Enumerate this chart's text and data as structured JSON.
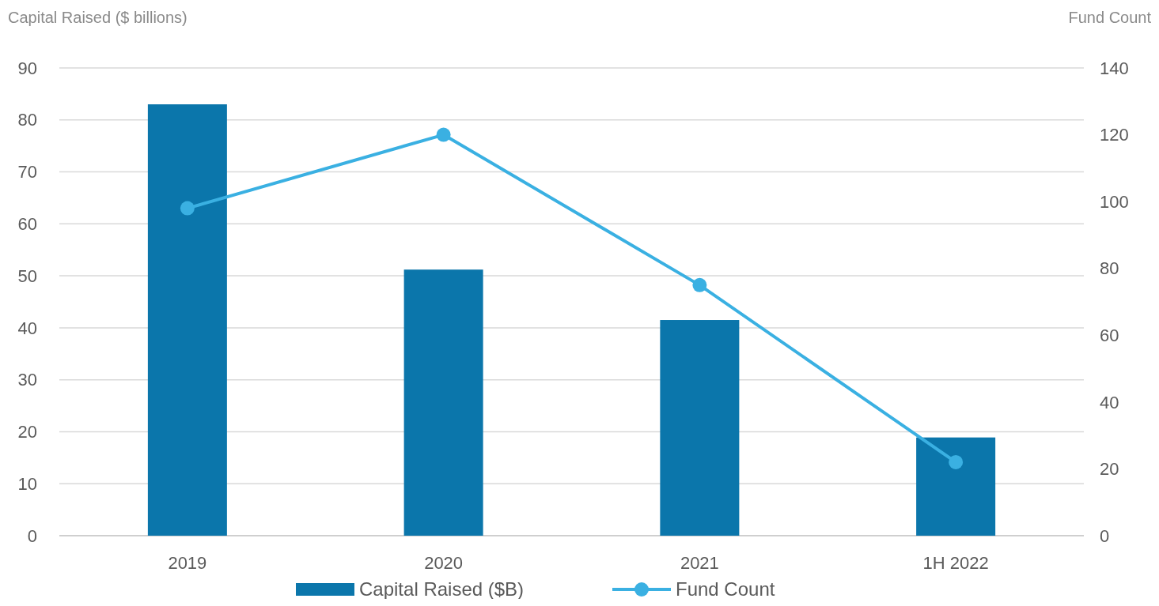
{
  "chart_data": {
    "type": "bar",
    "xlabel": null,
    "ylabel": "Capital Raised ($ billions)",
    "y2label": "Fund Count",
    "categories": [
      "2019",
      "2020",
      "2021",
      "1H 2022"
    ],
    "series": [
      {
        "name": "Capital Raised ($B)",
        "color": "#0b76ab",
        "values": [
          83,
          51.2,
          41.5,
          18.9
        ]
      },
      {
        "name": "Fund Count",
        "type": "line",
        "axis": "y2",
        "color": "#3ab0e2",
        "values": [
          98,
          120,
          75,
          22
        ]
      }
    ],
    "ylim": [
      0,
      90
    ],
    "yticks": [
      0,
      10,
      20,
      30,
      40,
      50,
      60,
      70,
      80,
      90
    ],
    "y2lim": [
      0,
      140
    ],
    "y2ticks": [
      0,
      20,
      40,
      60,
      80,
      100,
      120,
      140
    ],
    "grid": "y",
    "legend": "bottom",
    "marker": "circle",
    "line_style": "solid"
  }
}
